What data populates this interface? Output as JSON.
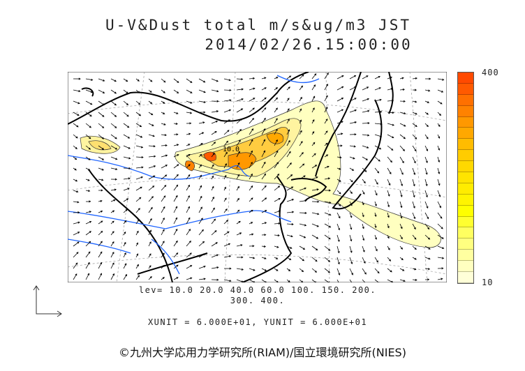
{
  "title": {
    "line1": "U-V&Dust total m/s&ug/m3 JST",
    "line2": "2014/02/26.15:00:00"
  },
  "colorbar": {
    "max_label": "400",
    "min_label": "10",
    "colors": [
      "#ff4a00",
      "#ff5a00",
      "#ff7000",
      "#ff8200",
      "#ff9800",
      "#ffa800",
      "#ffbc00",
      "#ffcc00",
      "#ffd800",
      "#ffe400",
      "#ffec00",
      "#fff400",
      "#ffff00",
      "#ffff30",
      "#ffff60",
      "#ffff80",
      "#ffffa0",
      "#ffffc0",
      "#ffffd8"
    ]
  },
  "contour_label": "10.0",
  "levels": {
    "line1": "lev= 10.0 20.0 40.0 60.0 100. 150. 200.",
    "line2": "300. 400."
  },
  "units": "XUNIT = 6.000E+01, YUNIT = 6.000E+01",
  "copyright": "©九州大学応用力学研究所(RIAM)/国立環境研究所(NIES)",
  "colors": {
    "coast": "#000000",
    "river": "#1e64ff",
    "grid": "#888888"
  }
}
